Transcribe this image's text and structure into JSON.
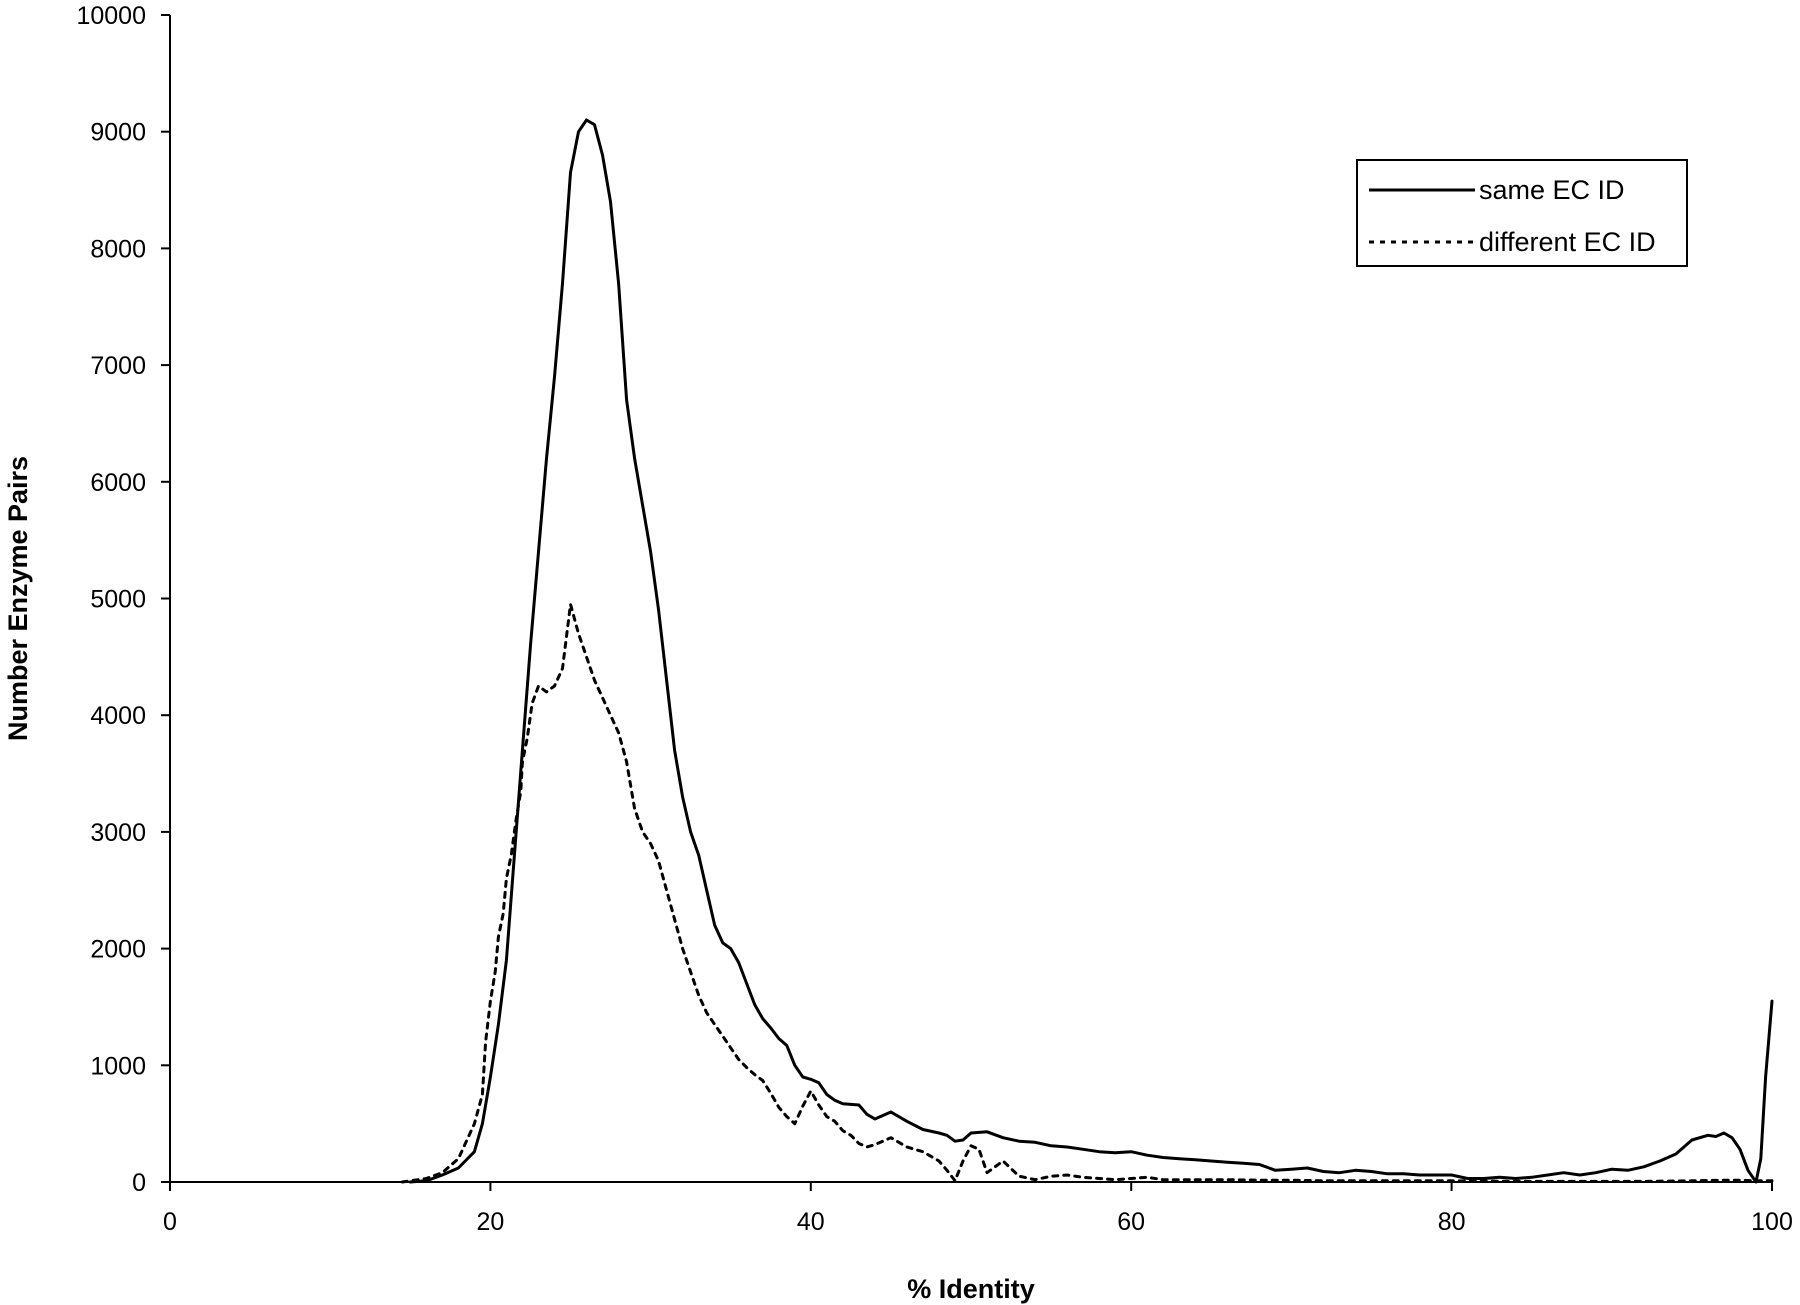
{
  "chart_data": {
    "type": "line",
    "title": "",
    "xlabel": "% Identity",
    "ylabel": "Number Enzyme Pairs",
    "xlim": [
      0,
      100
    ],
    "ylim": [
      0,
      10000
    ],
    "x_ticks": [
      "0",
      "20",
      "40",
      "60",
      "80",
      "100"
    ],
    "y_ticks": [
      "0",
      "1000",
      "2000",
      "3000",
      "4000",
      "5000",
      "6000",
      "7000",
      "8000",
      "9000",
      "10000"
    ],
    "grid": false,
    "legend_position": "top-right",
    "series": [
      {
        "name": "same EC ID",
        "line_style": "solid",
        "color": "#000000",
        "points": [
          [
            15,
            0
          ],
          [
            16,
            10
          ],
          [
            17,
            60
          ],
          [
            18,
            120
          ],
          [
            19,
            260
          ],
          [
            19.5,
            500
          ],
          [
            20,
            900
          ],
          [
            20.5,
            1350
          ],
          [
            21,
            1900
          ],
          [
            21.5,
            2800
          ],
          [
            22,
            3700
          ],
          [
            22.5,
            4600
          ],
          [
            23,
            5400
          ],
          [
            23.5,
            6200
          ],
          [
            24,
            6900
          ],
          [
            24.5,
            7700
          ],
          [
            25,
            8650
          ],
          [
            25.5,
            9000
          ],
          [
            26,
            9100
          ],
          [
            26.5,
            9060
          ],
          [
            27,
            8800
          ],
          [
            27.5,
            8400
          ],
          [
            28,
            7700
          ],
          [
            28.5,
            6700
          ],
          [
            29,
            6200
          ],
          [
            29.5,
            5800
          ],
          [
            30,
            5400
          ],
          [
            30.5,
            4900
          ],
          [
            31,
            4300
          ],
          [
            31.5,
            3700
          ],
          [
            32,
            3300
          ],
          [
            32.5,
            3000
          ],
          [
            33,
            2800
          ],
          [
            33.5,
            2500
          ],
          [
            34,
            2200
          ],
          [
            34.5,
            2050
          ],
          [
            35,
            2000
          ],
          [
            35.5,
            1880
          ],
          [
            36,
            1700
          ],
          [
            36.5,
            1520
          ],
          [
            37,
            1400
          ],
          [
            37.5,
            1320
          ],
          [
            38,
            1230
          ],
          [
            38.5,
            1170
          ],
          [
            39,
            1000
          ],
          [
            39.5,
            900
          ],
          [
            40,
            880
          ],
          [
            40.5,
            850
          ],
          [
            41,
            750
          ],
          [
            41.5,
            700
          ],
          [
            42,
            670
          ],
          [
            43,
            660
          ],
          [
            43.5,
            580
          ],
          [
            44,
            540
          ],
          [
            44.5,
            570
          ],
          [
            45,
            600
          ],
          [
            46,
            520
          ],
          [
            47,
            450
          ],
          [
            48,
            420
          ],
          [
            48.5,
            400
          ],
          [
            49,
            350
          ],
          [
            49.5,
            360
          ],
          [
            50,
            420
          ],
          [
            51,
            430
          ],
          [
            52,
            380
          ],
          [
            53,
            350
          ],
          [
            54,
            340
          ],
          [
            55,
            310
          ],
          [
            56,
            300
          ],
          [
            57,
            280
          ],
          [
            58,
            260
          ],
          [
            59,
            250
          ],
          [
            60,
            260
          ],
          [
            61,
            230
          ],
          [
            62,
            210
          ],
          [
            63,
            200
          ],
          [
            64,
            190
          ],
          [
            65,
            180
          ],
          [
            66,
            170
          ],
          [
            67,
            160
          ],
          [
            68,
            150
          ],
          [
            69,
            100
          ],
          [
            70,
            110
          ],
          [
            71,
            120
          ],
          [
            72,
            90
          ],
          [
            73,
            80
          ],
          [
            74,
            100
          ],
          [
            75,
            90
          ],
          [
            76,
            70
          ],
          [
            77,
            70
          ],
          [
            78,
            60
          ],
          [
            79,
            60
          ],
          [
            80,
            60
          ],
          [
            81,
            30
          ],
          [
            82,
            30
          ],
          [
            83,
            40
          ],
          [
            84,
            30
          ],
          [
            85,
            40
          ],
          [
            86,
            60
          ],
          [
            87,
            80
          ],
          [
            88,
            60
          ],
          [
            89,
            80
          ],
          [
            90,
            110
          ],
          [
            91,
            100
          ],
          [
            92,
            130
          ],
          [
            93,
            180
          ],
          [
            94,
            240
          ],
          [
            94.5,
            300
          ],
          [
            95,
            360
          ],
          [
            96,
            400
          ],
          [
            96.5,
            390
          ],
          [
            97,
            420
          ],
          [
            97.5,
            380
          ],
          [
            98,
            280
          ],
          [
            98.5,
            100
          ],
          [
            99,
            0
          ],
          [
            99.3,
            200
          ],
          [
            99.6,
            900
          ],
          [
            100,
            1550
          ]
        ]
      },
      {
        "name": "different EC ID",
        "line_style": "dotted",
        "color": "#000000",
        "points": [
          [
            14.5,
            0
          ],
          [
            15,
            10
          ],
          [
            16,
            30
          ],
          [
            17,
            80
          ],
          [
            18,
            200
          ],
          [
            18.5,
            350
          ],
          [
            19,
            500
          ],
          [
            19.5,
            750
          ],
          [
            19.7,
            1200
          ],
          [
            20,
            1550
          ],
          [
            20.3,
            1800
          ],
          [
            20.5,
            2100
          ],
          [
            20.8,
            2300
          ],
          [
            21,
            2600
          ],
          [
            21.3,
            2800
          ],
          [
            21.6,
            3100
          ],
          [
            21.9,
            3350
          ],
          [
            22,
            3600
          ],
          [
            22.3,
            3800
          ],
          [
            22.6,
            4100
          ],
          [
            23,
            4250
          ],
          [
            23.5,
            4200
          ],
          [
            24,
            4250
          ],
          [
            24.5,
            4400
          ],
          [
            25,
            4950
          ],
          [
            25.5,
            4700
          ],
          [
            26,
            4500
          ],
          [
            26.5,
            4300
          ],
          [
            27,
            4150
          ],
          [
            27.5,
            4000
          ],
          [
            28,
            3850
          ],
          [
            28.5,
            3600
          ],
          [
            29,
            3200
          ],
          [
            29.5,
            3000
          ],
          [
            30,
            2900
          ],
          [
            30.5,
            2750
          ],
          [
            31,
            2500
          ],
          [
            31.5,
            2250
          ],
          [
            32,
            2000
          ],
          [
            32.5,
            1800
          ],
          [
            33,
            1600
          ],
          [
            33.5,
            1450
          ],
          [
            34,
            1350
          ],
          [
            34.5,
            1250
          ],
          [
            35,
            1150
          ],
          [
            35.5,
            1050
          ],
          [
            36,
            980
          ],
          [
            36.5,
            920
          ],
          [
            37,
            870
          ],
          [
            37.5,
            760
          ],
          [
            38,
            640
          ],
          [
            38.5,
            560
          ],
          [
            39,
            500
          ],
          [
            39.5,
            650
          ],
          [
            40,
            780
          ],
          [
            40.5,
            660
          ],
          [
            41,
            560
          ],
          [
            41.5,
            520
          ],
          [
            42,
            440
          ],
          [
            42.5,
            400
          ],
          [
            43,
            330
          ],
          [
            43.5,
            300
          ],
          [
            44,
            320
          ],
          [
            45,
            380
          ],
          [
            46,
            300
          ],
          [
            47,
            260
          ],
          [
            48,
            180
          ],
          [
            48.5,
            100
          ],
          [
            49,
            10
          ],
          [
            49.5,
            180
          ],
          [
            50,
            310
          ],
          [
            50.5,
            280
          ],
          [
            51,
            80
          ],
          [
            52,
            180
          ],
          [
            53,
            50
          ],
          [
            54,
            20
          ],
          [
            55,
            50
          ],
          [
            56,
            60
          ],
          [
            57,
            40
          ],
          [
            58,
            30
          ],
          [
            59,
            20
          ],
          [
            60,
            30
          ],
          [
            61,
            40
          ],
          [
            62,
            20
          ],
          [
            64,
            20
          ],
          [
            66,
            20
          ],
          [
            68,
            15
          ],
          [
            70,
            15
          ],
          [
            72,
            10
          ],
          [
            74,
            10
          ],
          [
            76,
            10
          ],
          [
            78,
            10
          ],
          [
            80,
            10
          ],
          [
            84,
            5
          ],
          [
            88,
            5
          ],
          [
            92,
            5
          ],
          [
            95,
            10
          ],
          [
            97,
            15
          ],
          [
            98,
            15
          ],
          [
            99,
            10
          ],
          [
            100,
            10
          ]
        ]
      }
    ]
  }
}
